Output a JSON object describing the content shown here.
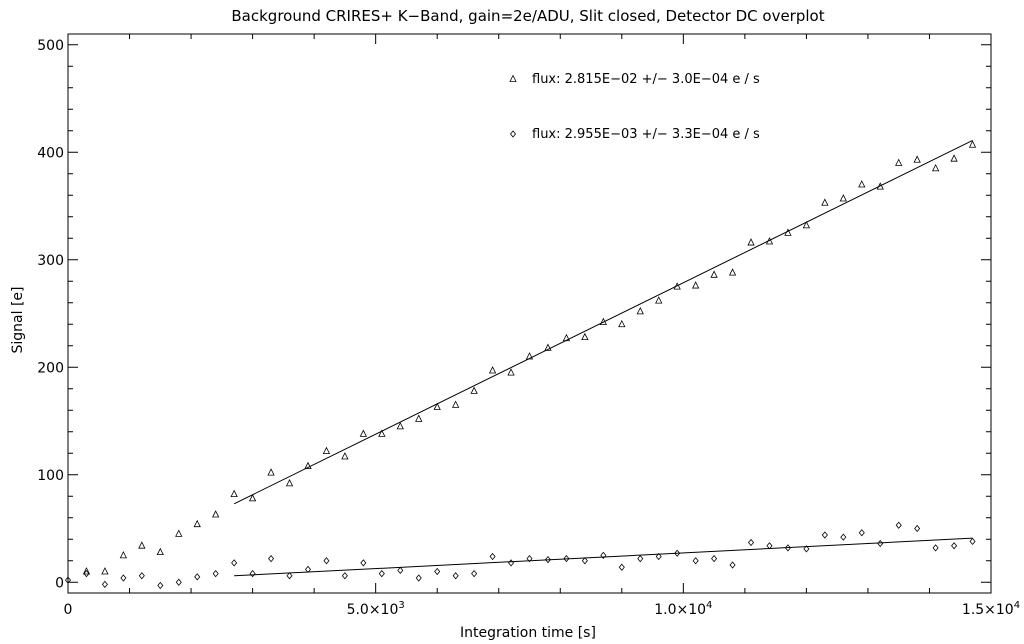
{
  "chart_data": {
    "type": "scatter",
    "title": "Background CRIRES+ K−Band, gain=2e/ADU, Slit closed, Detector DC overplot",
    "xlabel": "Integration time [s]",
    "ylabel": "Signal [e]",
    "xlim": [
      0,
      15000
    ],
    "ylim": [
      -10,
      510
    ],
    "x_tick_labels": [
      {
        "value": 0,
        "text": "0"
      },
      {
        "value": 5000,
        "text": "5.0×10",
        "sup": "3"
      },
      {
        "value": 10000,
        "text": "1.0×10",
        "sup": "4"
      },
      {
        "value": 15000,
        "text": "1.5×10",
        "sup": "4"
      }
    ],
    "y_tick_labels": [
      {
        "value": 0,
        "text": "0"
      },
      {
        "value": 100,
        "text": "100"
      },
      {
        "value": 200,
        "text": "200"
      },
      {
        "value": 300,
        "text": "300"
      },
      {
        "value": 400,
        "text": "400"
      },
      {
        "value": 500,
        "text": "500"
      }
    ],
    "series": [
      {
        "name": "flux:  2.815E−02 +/−    3.0E−04 e / s",
        "marker": "triangle",
        "x": [
          300,
          600,
          900,
          1200,
          1500,
          1800,
          2100,
          2400,
          2700,
          3000,
          3300,
          3600,
          3900,
          4200,
          4500,
          4800,
          5100,
          5400,
          5700,
          6000,
          6300,
          6600,
          6900,
          7200,
          7500,
          7800,
          8100,
          8400,
          8700,
          9000,
          9300,
          9600,
          9900,
          10200,
          10500,
          10800,
          11100,
          11400,
          11700,
          12000,
          12300,
          12600,
          12900,
          13200,
          13500,
          13800,
          14100,
          14400,
          14700
        ],
        "y": [
          10,
          10,
          25,
          34,
          28,
          45,
          54,
          63,
          82,
          78,
          102,
          92,
          108,
          122,
          117,
          138,
          138,
          145,
          152,
          163,
          165,
          178,
          197,
          195,
          210,
          218,
          227,
          228,
          242,
          240,
          252,
          262,
          275,
          276,
          286,
          288,
          316,
          317,
          325,
          332,
          353,
          357,
          370,
          368,
          390,
          393,
          385,
          394,
          407
        ]
      },
      {
        "name": "flux:  2.955E−03 +/−    3.3E−04 e / s",
        "marker": "diamond",
        "x": [
          0,
          300,
          600,
          900,
          1200,
          1500,
          1800,
          2100,
          2400,
          2700,
          3000,
          3300,
          3600,
          3900,
          4200,
          4500,
          4800,
          5100,
          5400,
          5700,
          6000,
          6300,
          6600,
          6900,
          7200,
          7500,
          7800,
          8100,
          8400,
          8700,
          9000,
          9300,
          9600,
          9900,
          10200,
          10500,
          10800,
          11100,
          11400,
          11700,
          12000,
          12300,
          12600,
          12900,
          13200,
          13500,
          13800,
          14100,
          14400,
          14700
        ],
        "y": [
          2,
          8,
          -2,
          4,
          6,
          -3,
          0,
          5,
          8,
          18,
          8,
          22,
          6,
          12,
          20,
          6,
          18,
          8,
          11,
          4,
          10,
          6,
          8,
          24,
          18,
          22,
          21,
          22,
          20,
          25,
          14,
          22,
          24,
          27,
          20,
          22,
          16,
          37,
          34,
          32,
          31,
          44,
          42,
          46,
          36,
          53,
          50,
          32,
          34,
          38
        ]
      }
    ],
    "fit_lines": [
      {
        "series": 0,
        "x": [
          2700,
          14700
        ],
        "y": [
          73,
          411
        ]
      },
      {
        "series": 1,
        "x": [
          2700,
          14700
        ],
        "y": [
          6,
          41
        ]
      }
    ],
    "legend_position": "top-right",
    "grid": false
  }
}
